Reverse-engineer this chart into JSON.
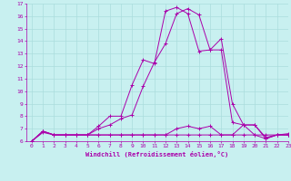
{
  "xlabel": "Windchill (Refroidissement éolien,°C)",
  "xlim": [
    -0.5,
    23
  ],
  "ylim": [
    6,
    17
  ],
  "yticks": [
    6,
    7,
    8,
    9,
    10,
    11,
    12,
    13,
    14,
    15,
    16,
    17
  ],
  "xticks": [
    0,
    1,
    2,
    3,
    4,
    5,
    6,
    7,
    8,
    9,
    10,
    11,
    12,
    13,
    14,
    15,
    16,
    17,
    18,
    19,
    20,
    21,
    22,
    23
  ],
  "background_color": "#c8f0f0",
  "grid_color": "#aadddd",
  "line_color": "#aa00aa",
  "series": [
    [
      6.0,
      6.8,
      6.5,
      6.5,
      6.5,
      6.5,
      7.2,
      8.0,
      8.0,
      10.5,
      12.5,
      12.2,
      16.4,
      16.7,
      16.2,
      13.2,
      13.3,
      14.2,
      9.0,
      7.3,
      7.3,
      6.2,
      6.5,
      6.6
    ],
    [
      6.0,
      6.8,
      6.5,
      6.5,
      6.5,
      6.5,
      6.5,
      6.5,
      6.5,
      6.5,
      6.5,
      6.5,
      6.5,
      6.5,
      6.5,
      6.5,
      6.5,
      6.5,
      6.5,
      7.3,
      6.5,
      6.5,
      6.5,
      6.5
    ],
    [
      6.0,
      6.8,
      6.5,
      6.5,
      6.5,
      6.5,
      6.5,
      6.5,
      6.5,
      6.5,
      6.5,
      6.5,
      6.5,
      7.0,
      7.2,
      7.0,
      7.2,
      6.5,
      6.5,
      6.5,
      6.5,
      6.2,
      6.5,
      6.5
    ],
    [
      6.0,
      6.7,
      6.5,
      6.5,
      6.5,
      6.5,
      7.0,
      7.3,
      7.8,
      8.1,
      10.4,
      12.3,
      13.8,
      16.2,
      16.6,
      16.1,
      13.3,
      13.3,
      7.5,
      7.3,
      7.3,
      6.3,
      6.5,
      6.5
    ]
  ]
}
